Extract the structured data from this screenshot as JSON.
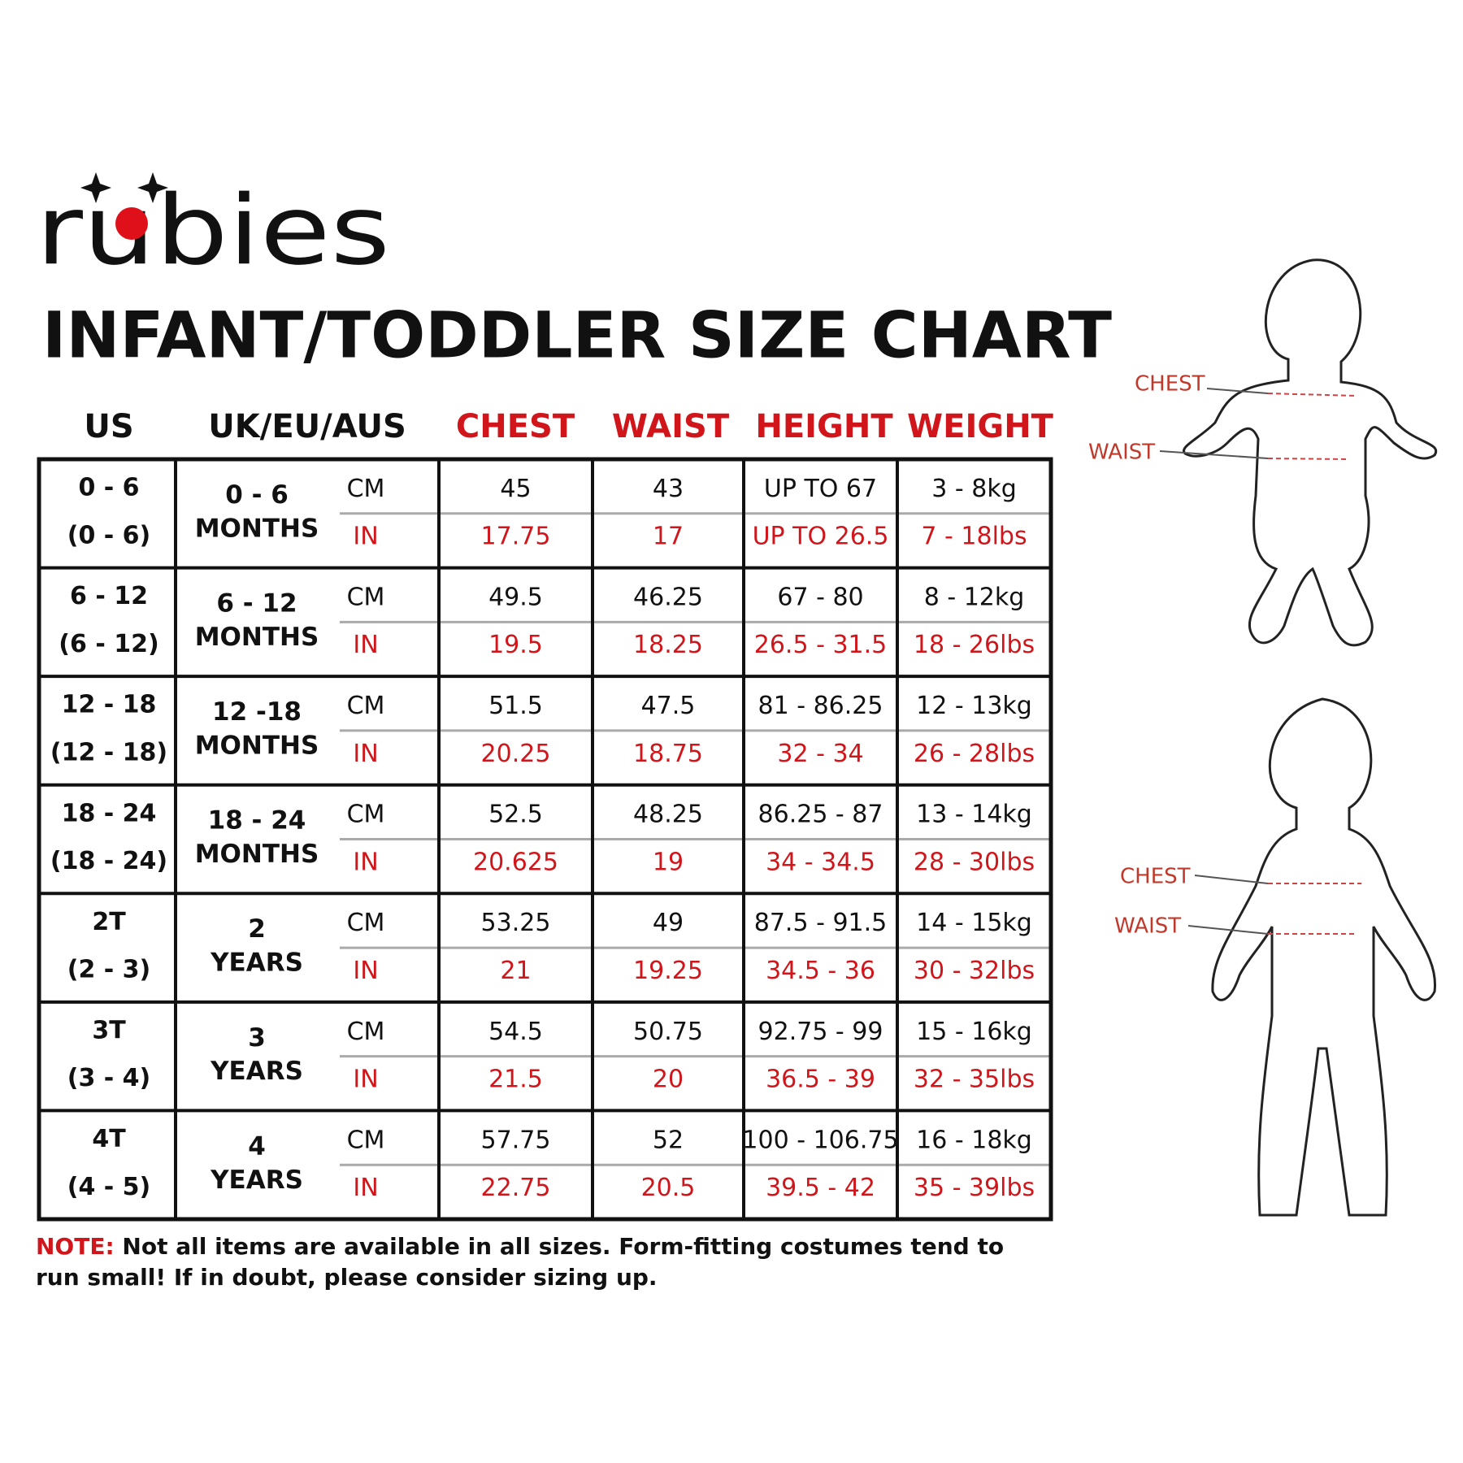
{
  "brand": "rubies",
  "title": "INFANT/TODDLER SIZE CHART",
  "table": {
    "headers": [
      "US",
      "UK/EU/AUS",
      "CHEST",
      "WAIST",
      "HEIGHT",
      "WEIGHT"
    ],
    "units": [
      "CM",
      "IN"
    ],
    "rows": [
      {
        "us": [
          "0 - 6",
          "(0 - 6)"
        ],
        "uk": [
          "0 - 6",
          "MONTHS"
        ],
        "cm": [
          "45",
          "43",
          "UP TO 67",
          "3 - 8kg"
        ],
        "in": [
          "17.75",
          "17",
          "UP TO 26.5",
          "7 - 18lbs"
        ]
      },
      {
        "us": [
          "6 - 12",
          "(6 - 12)"
        ],
        "uk": [
          "6 - 12",
          "MONTHS"
        ],
        "cm": [
          "49.5",
          "46.25",
          "67 - 80",
          "8 - 12kg"
        ],
        "in": [
          "19.5",
          "18.25",
          "26.5 - 31.5",
          "18 - 26lbs"
        ]
      },
      {
        "us": [
          "12 - 18",
          "(12 - 18)"
        ],
        "uk": [
          "12 -18",
          "MONTHS"
        ],
        "cm": [
          "51.5",
          "47.5",
          "81 - 86.25",
          "12 - 13kg"
        ],
        "in": [
          "20.25",
          "18.75",
          "32 - 34",
          "26 - 28lbs"
        ]
      },
      {
        "us": [
          "18 - 24",
          "(18 - 24)"
        ],
        "uk": [
          "18 - 24",
          "MONTHS"
        ],
        "cm": [
          "52.5",
          "48.25",
          "86.25 - 87",
          "13 - 14kg"
        ],
        "in": [
          "20.625",
          "19",
          "34 - 34.5",
          "28 - 30lbs"
        ]
      },
      {
        "us": [
          "2T",
          "(2 - 3)"
        ],
        "uk": [
          "2",
          "YEARS"
        ],
        "cm": [
          "53.25",
          "49",
          "87.5 - 91.5",
          "14 - 15kg"
        ],
        "in": [
          "21",
          "19.25",
          "34.5 - 36",
          "30 - 32lbs"
        ]
      },
      {
        "us": [
          "3T",
          "(3 - 4)"
        ],
        "uk": [
          "3",
          "YEARS"
        ],
        "cm": [
          "54.5",
          "50.75",
          "92.75 - 99",
          "15 - 16kg"
        ],
        "in": [
          "21.5",
          "20",
          "36.5 - 39",
          "32 - 35lbs"
        ]
      },
      {
        "us": [
          "4T",
          "(4 - 5)"
        ],
        "uk": [
          "4",
          "YEARS"
        ],
        "cm": [
          "57.75",
          "52",
          "100 - 106.75",
          "16 - 18kg"
        ],
        "in": [
          "22.75",
          "20.5",
          "39.5 - 42",
          "35 - 39lbs"
        ]
      }
    ]
  },
  "diagram_labels": [
    "CHEST",
    "WAIST"
  ],
  "note": {
    "label": "NOTE:",
    "text": "Not all items are available in all sizes. Form-fitting costumes tend to run small! If in doubt, please consider sizing up."
  }
}
